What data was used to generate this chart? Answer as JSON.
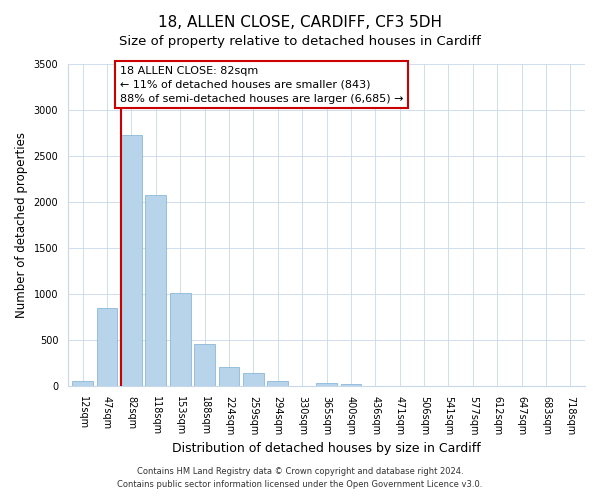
{
  "title": "18, ALLEN CLOSE, CARDIFF, CF3 5DH",
  "subtitle": "Size of property relative to detached houses in Cardiff",
  "xlabel": "Distribution of detached houses by size in Cardiff",
  "ylabel": "Number of detached properties",
  "bar_labels": [
    "12sqm",
    "47sqm",
    "82sqm",
    "118sqm",
    "153sqm",
    "188sqm",
    "224sqm",
    "259sqm",
    "294sqm",
    "330sqm",
    "365sqm",
    "400sqm",
    "436sqm",
    "471sqm",
    "506sqm",
    "541sqm",
    "577sqm",
    "612sqm",
    "647sqm",
    "683sqm",
    "718sqm"
  ],
  "bar_values": [
    55,
    843,
    2730,
    2070,
    1010,
    455,
    210,
    145,
    55,
    0,
    35,
    20,
    0,
    0,
    0,
    0,
    0,
    0,
    0,
    0,
    0
  ],
  "bar_color": "#b8d4ea",
  "bar_edge_color": "#7bafd4",
  "marker_index": 2,
  "marker_color": "#cc0000",
  "ylim": [
    0,
    3500
  ],
  "yticks": [
    0,
    500,
    1000,
    1500,
    2000,
    2500,
    3000,
    3500
  ],
  "annotation_line1": "18 ALLEN CLOSE: 82sqm",
  "annotation_line2": "← 11% of detached houses are smaller (843)",
  "annotation_line3": "88% of semi-detached houses are larger (6,685) →",
  "annotation_box_color": "#ffffff",
  "annotation_box_edge": "#cc0000",
  "footer1": "Contains HM Land Registry data © Crown copyright and database right 2024.",
  "footer2": "Contains public sector information licensed under the Open Government Licence v3.0.",
  "title_fontsize": 11,
  "subtitle_fontsize": 9.5,
  "tick_fontsize": 7,
  "ylabel_fontsize": 8.5,
  "xlabel_fontsize": 9,
  "annotation_fontsize": 8,
  "footer_fontsize": 6
}
